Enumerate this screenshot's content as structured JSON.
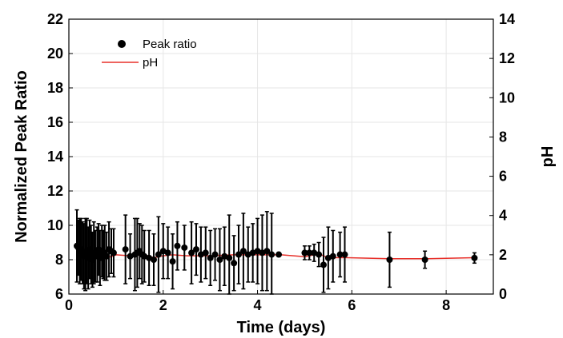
{
  "chart_data": {
    "type": "scatter",
    "title": "",
    "xlabel": "Time (days)",
    "ylabel": "Normalized Peak Ratio",
    "ylabel_right": "pH",
    "xlim": [
      0,
      9
    ],
    "ylim": [
      6,
      22
    ],
    "ylim_right": [
      0,
      14
    ],
    "x_ticks": [
      "0",
      "2",
      "4",
      "6",
      "8"
    ],
    "y_ticks": [
      "6",
      "8",
      "10",
      "12",
      "14",
      "16",
      "18",
      "20",
      "22"
    ],
    "y_ticks_right": [
      "0",
      "2",
      "4",
      "6",
      "8",
      "10",
      "12",
      "14"
    ],
    "grid": true,
    "legend_placement": "top-left",
    "series": [
      {
        "name": "Peak ratio",
        "color": "#000000",
        "marker": "circle",
        "x": [
          0.17,
          0.2,
          0.23,
          0.26,
          0.29,
          0.32,
          0.35,
          0.38,
          0.41,
          0.44,
          0.47,
          0.5,
          0.53,
          0.56,
          0.6,
          0.63,
          0.66,
          0.7,
          0.73,
          0.76,
          0.8,
          0.85,
          0.9,
          0.95,
          1.2,
          1.3,
          1.4,
          1.45,
          1.5,
          1.55,
          1.6,
          1.7,
          1.8,
          1.9,
          2.0,
          2.1,
          2.2,
          2.3,
          2.45,
          2.6,
          2.7,
          2.8,
          2.9,
          3.0,
          3.1,
          3.2,
          3.3,
          3.4,
          3.5,
          3.6,
          3.7,
          3.8,
          3.9,
          4.0,
          4.1,
          4.2,
          4.3,
          4.45,
          5.0,
          5.1,
          5.2,
          5.3,
          5.4,
          5.5,
          5.6,
          5.75,
          5.85,
          6.8,
          7.55,
          8.6
        ],
        "y": [
          8.8,
          8.7,
          8.5,
          8.6,
          8.4,
          8.2,
          8.3,
          8.5,
          8.1,
          8.6,
          8.3,
          8.0,
          8.4,
          8.2,
          8.3,
          8.6,
          8.1,
          8.5,
          8.3,
          8.4,
          8.2,
          8.6,
          8.5,
          8.4,
          8.6,
          8.2,
          8.3,
          8.4,
          8.5,
          8.3,
          8.2,
          8.1,
          8.0,
          8.3,
          8.5,
          8.4,
          7.9,
          8.8,
          8.7,
          8.4,
          8.6,
          8.3,
          8.4,
          8.1,
          8.3,
          8.0,
          8.2,
          8.1,
          7.8,
          8.3,
          8.5,
          8.3,
          8.4,
          8.5,
          8.4,
          8.5,
          8.3,
          8.3,
          8.4,
          8.4,
          8.4,
          8.3,
          7.7,
          8.1,
          8.2,
          8.3,
          8.3,
          8.0,
          8.0,
          8.1
        ],
        "err": [
          2.1,
          1.6,
          1.9,
          1.8,
          1.8,
          1.9,
          2.1,
          1.9,
          1.8,
          1.7,
          1.7,
          1.6,
          1.8,
          1.5,
          1.6,
          1.5,
          1.6,
          1.5,
          1.4,
          1.6,
          1.4,
          1.6,
          1.3,
          1.4,
          2.0,
          1.3,
          2.1,
          2.0,
          1.6,
          1.7,
          1.5,
          1.6,
          1.5,
          2.2,
          1.6,
          1.5,
          1.6,
          1.4,
          1.3,
          1.8,
          1.5,
          1.6,
          1.5,
          1.6,
          1.5,
          1.8,
          1.7,
          2.5,
          1.6,
          1.7,
          2.2,
          1.6,
          1.7,
          1.9,
          2.2,
          2.3,
          2.4,
          0.1,
          0.4,
          0.4,
          0.5,
          0.7,
          1.6,
          1.8,
          1.5,
          1.3,
          1.6,
          1.6,
          0.5,
          0.3
        ]
      },
      {
        "name": "pH",
        "color": "#e8302a",
        "axis": "right",
        "x": [
          0.17,
          0.3,
          0.5,
          0.7,
          0.9,
          1.0,
          1.3,
          1.6,
          1.8,
          2.0,
          2.2,
          2.5,
          3.0,
          3.5,
          4.0,
          4.5,
          5.0,
          5.3,
          5.45,
          5.6,
          5.9,
          6.8,
          7.6,
          8.6
        ],
        "y": [
          2.0,
          1.9,
          1.9,
          1.85,
          1.9,
          2.0,
          1.95,
          2.0,
          1.85,
          1.95,
          2.0,
          1.95,
          1.95,
          2.0,
          2.0,
          2.0,
          1.9,
          2.05,
          1.9,
          1.85,
          1.85,
          1.8,
          1.8,
          1.85
        ]
      }
    ]
  }
}
